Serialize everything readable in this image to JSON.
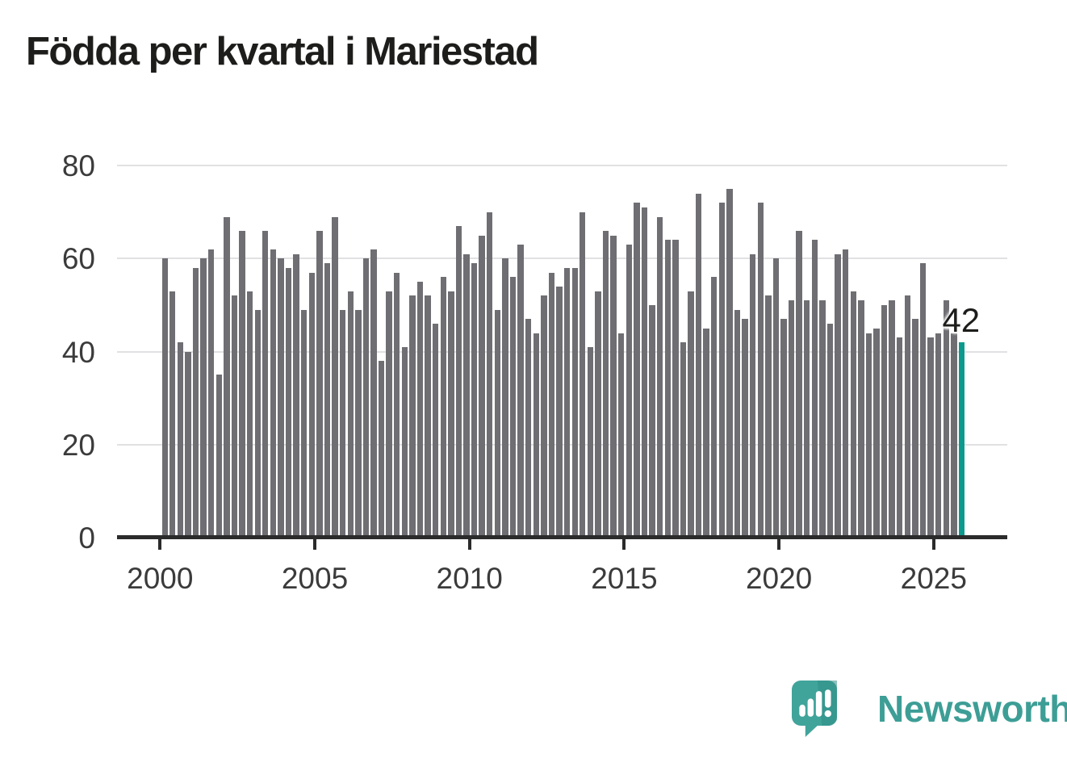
{
  "title": "Födda per kvartal i Mariestad",
  "annotation": {
    "label": "42"
  },
  "branding": {
    "logo_text": "Newsworthy",
    "logo_icon": "speech-bubble-bar-chart-icon"
  },
  "colors": {
    "bar": "#6F6E73",
    "highlight": "#0D9A8E",
    "title_text": "#1D1D1B",
    "axis_text": "#3B3B3B",
    "gridline": "#E1E1E4",
    "axis_line": "#2B2B2B",
    "logo_teal": "#41A49B",
    "logo_teal_dark": "#2F8E86",
    "logo_text_color": "#3D9E96"
  },
  "chart_data": {
    "type": "bar",
    "title": "Födda per kvartal i Mariestad",
    "xlabel": "",
    "ylabel": "",
    "ylim": [
      0,
      80
    ],
    "y_ticks": [
      0,
      20,
      40,
      60,
      80
    ],
    "grid": true,
    "legend": "none",
    "x_tick_labels": [
      "2000",
      "2005",
      "2010",
      "2015",
      "2020",
      "2025"
    ],
    "series_name": "Födda per kvartal",
    "years": [
      {
        "year": 2000,
        "values": [
          60,
          53,
          42,
          40
        ]
      },
      {
        "year": 2001,
        "values": [
          58,
          60,
          62,
          35
        ]
      },
      {
        "year": 2002,
        "values": [
          69,
          52,
          66,
          53
        ]
      },
      {
        "year": 2003,
        "values": [
          49,
          66,
          62,
          60
        ]
      },
      {
        "year": 2004,
        "values": [
          58,
          61,
          49,
          57
        ]
      },
      {
        "year": 2005,
        "values": [
          66,
          59,
          69,
          49
        ]
      },
      {
        "year": 2006,
        "values": [
          53,
          49,
          60,
          62
        ]
      },
      {
        "year": 2007,
        "values": [
          38,
          53,
          57,
          41
        ]
      },
      {
        "year": 2008,
        "values": [
          52,
          55,
          52,
          46
        ]
      },
      {
        "year": 2009,
        "values": [
          56,
          53,
          67,
          61
        ]
      },
      {
        "year": 2010,
        "values": [
          59,
          65,
          70,
          49
        ]
      },
      {
        "year": 2011,
        "values": [
          60,
          56,
          63,
          47
        ]
      },
      {
        "year": 2012,
        "values": [
          44,
          52,
          57,
          54
        ]
      },
      {
        "year": 2013,
        "values": [
          58,
          58,
          70,
          41
        ]
      },
      {
        "year": 2014,
        "values": [
          53,
          66,
          65,
          44
        ]
      },
      {
        "year": 2015,
        "values": [
          63,
          72,
          71,
          50
        ]
      },
      {
        "year": 2016,
        "values": [
          69,
          64,
          64,
          42
        ]
      },
      {
        "year": 2017,
        "values": [
          53,
          74,
          45,
          56
        ]
      },
      {
        "year": 2018,
        "values": [
          72,
          75,
          49,
          47
        ]
      },
      {
        "year": 2019,
        "values": [
          61,
          72,
          52,
          60
        ]
      },
      {
        "year": 2020,
        "values": [
          47,
          51,
          66,
          51
        ]
      },
      {
        "year": 2021,
        "values": [
          64,
          51,
          46,
          61
        ]
      },
      {
        "year": 2022,
        "values": [
          62,
          53,
          51,
          44
        ]
      },
      {
        "year": 2023,
        "values": [
          45,
          50,
          51,
          43
        ]
      },
      {
        "year": 2024,
        "values": [
          52,
          47,
          59,
          43
        ]
      },
      {
        "year": 2025,
        "values": [
          44,
          51,
          44,
          42
        ]
      }
    ],
    "highlight": {
      "position": "last-bar",
      "value": 42,
      "label": "42"
    }
  }
}
